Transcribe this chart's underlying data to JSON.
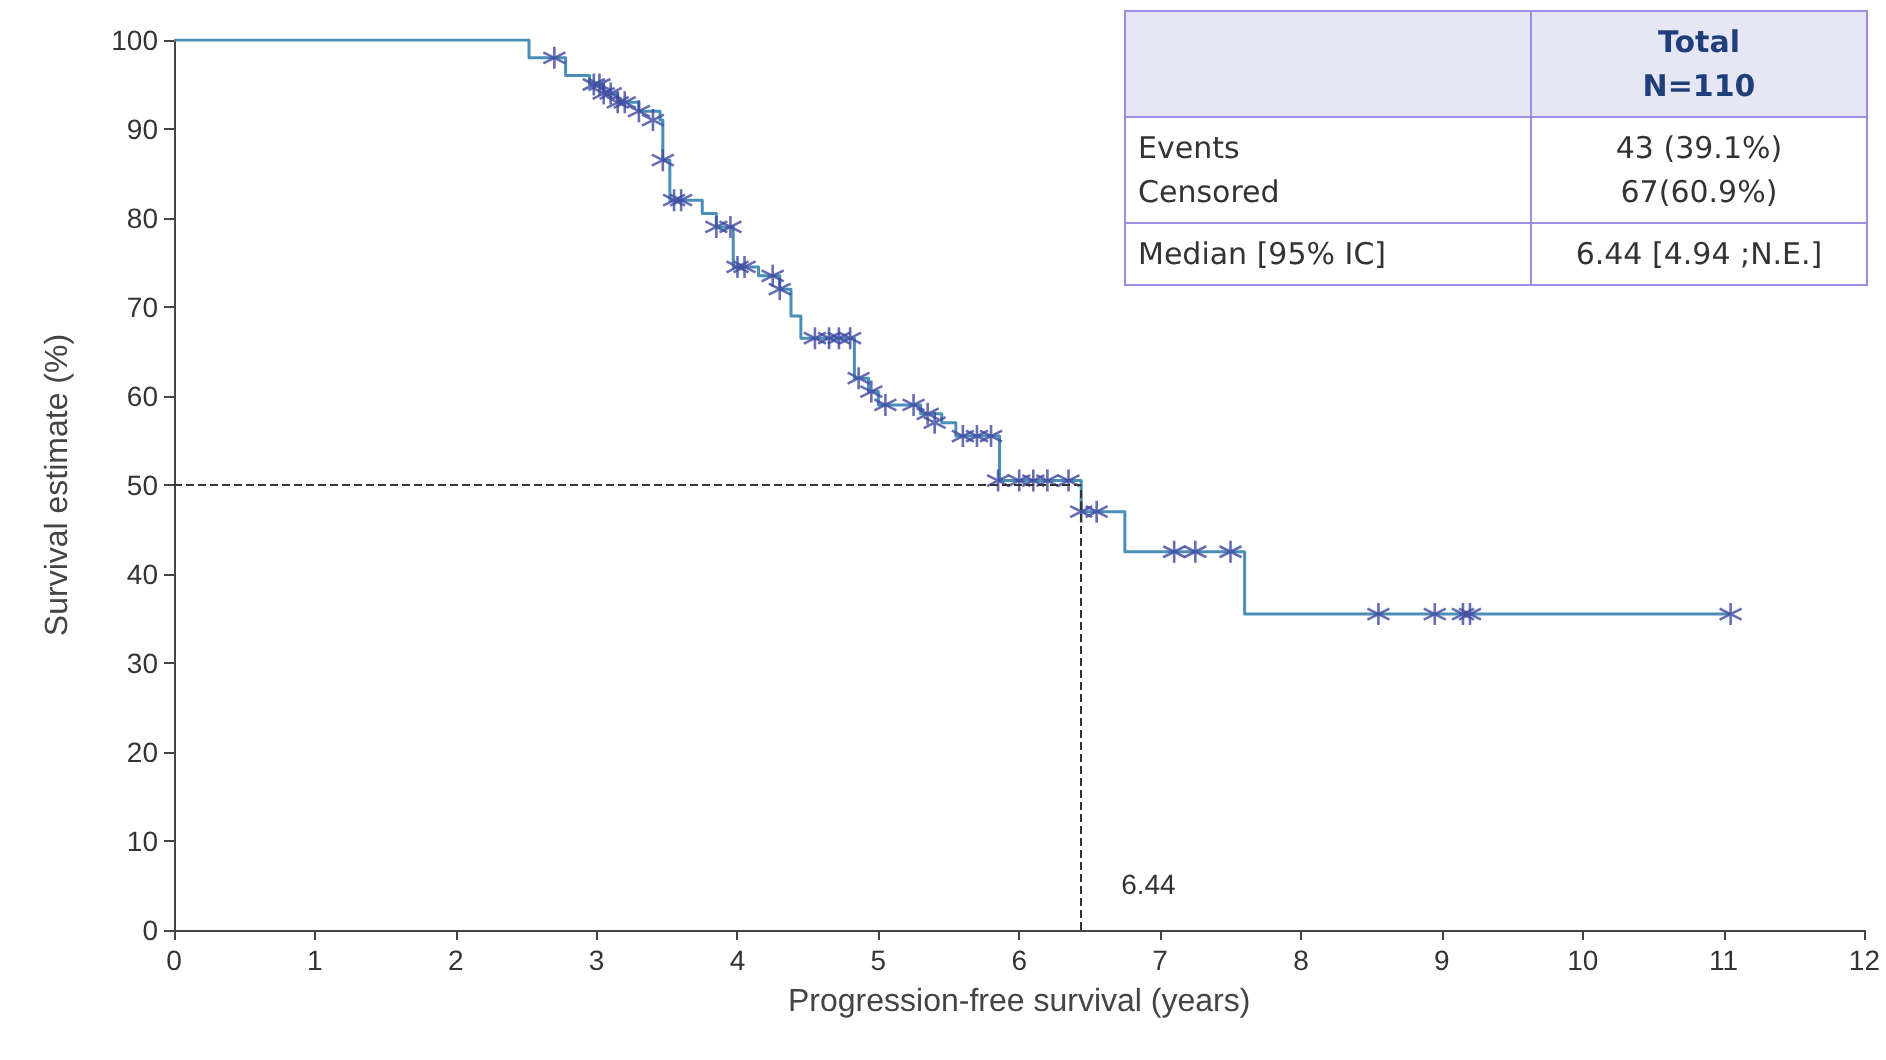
{
  "chart_data": {
    "type": "step",
    "xlabel": "Progression-free survival (years)",
    "ylabel": "Survival estimate (%)",
    "xlim": [
      0,
      12
    ],
    "xticks": [
      0,
      1,
      2,
      3,
      4,
      5,
      6,
      7,
      8,
      9,
      10,
      11,
      12
    ],
    "ylim": [
      0,
      100
    ],
    "yticks": [
      0,
      10,
      20,
      30,
      40,
      50,
      60,
      70,
      80,
      90,
      100
    ],
    "grid": false,
    "series": [
      {
        "color": "#4a8fb8",
        "x": [
          0,
          2.52,
          2.78,
          2.95,
          3.05,
          3.15,
          3.3,
          3.45,
          3.47,
          3.52,
          3.75,
          3.85,
          3.97,
          4.15,
          4.3,
          4.38,
          4.45,
          4.83,
          4.93,
          5.0,
          5.3,
          5.45,
          5.55,
          5.86,
          6.44,
          6.75,
          7.6,
          11.05
        ],
        "values": [
          100,
          98,
          96,
          95,
          94,
          93,
          92,
          91,
          86.5,
          82,
          80.5,
          79,
          74.5,
          73.5,
          72,
          69,
          66.5,
          62,
          60.5,
          59,
          58,
          57,
          55.5,
          50.5,
          47,
          42.5,
          35.5,
          35.5
        ]
      },
      {
        "type": "scatter",
        "marker": "cross",
        "color": "#3f48a0",
        "x": [
          2.7,
          2.98,
          3.02,
          3.05,
          3.1,
          3.15,
          3.2,
          3.3,
          3.4,
          3.47,
          3.55,
          3.6,
          3.85,
          3.95,
          4.0,
          4.05,
          4.25,
          4.3,
          4.55,
          4.65,
          4.72,
          4.8,
          4.86,
          4.95,
          5.05,
          5.25,
          5.35,
          5.4,
          5.6,
          5.7,
          5.8,
          5.85,
          6.0,
          6.1,
          6.2,
          6.35,
          6.44,
          6.55,
          7.1,
          7.25,
          7.5,
          8.55,
          8.95,
          9.15,
          9.2,
          11.05
        ],
        "values": [
          98,
          95,
          95,
          94,
          94,
          93,
          93,
          92,
          91,
          86.5,
          82,
          82,
          79,
          79,
          74.5,
          74.5,
          73.5,
          72,
          66.5,
          66.5,
          66.5,
          66.5,
          62,
          60.5,
          59,
          59,
          58,
          57,
          55.5,
          55.5,
          55.5,
          50.5,
          50.5,
          50.5,
          50.5,
          50.5,
          47,
          47,
          42.5,
          42.5,
          42.5,
          35.5,
          35.5,
          35.5,
          35.5,
          35.5
        ]
      }
    ],
    "ref_lines": [
      {
        "axis": "y",
        "value": 50,
        "line_style": "dashed",
        "color": "#333333"
      },
      {
        "axis": "x",
        "value": 6.44,
        "label": "6.44",
        "line_style": "dashed",
        "color": "#333333"
      }
    ],
    "annotations": [
      "Total",
      "N=110",
      "Events",
      "43 (39.1%)",
      "Censored",
      "67(60.9%)",
      "Median [95% IC]",
      "6.44 [4.94 ;N.E.]"
    ]
  }
}
